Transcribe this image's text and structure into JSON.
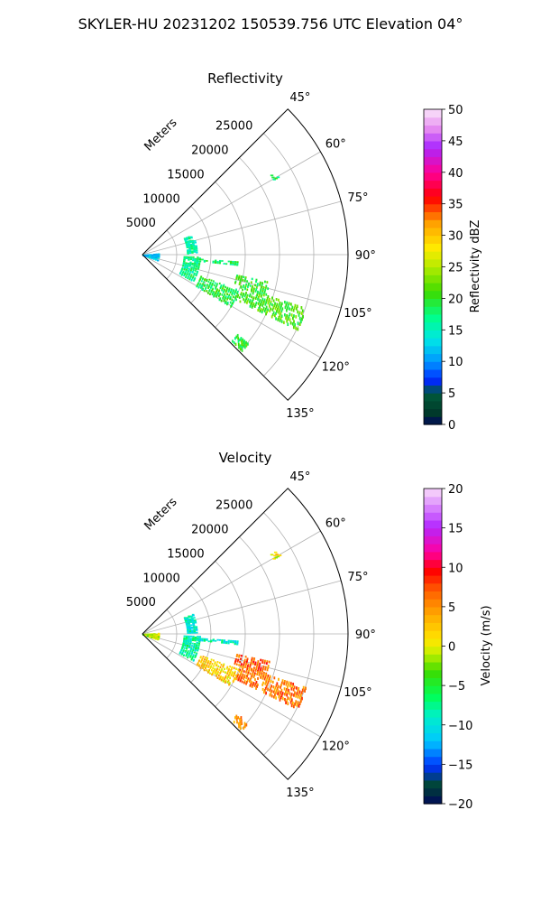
{
  "suptitle": "SKYLER-HU  20231202  150539.756 UTC Elevation 04°",
  "range_label": "Meters",
  "chart_data": [
    {
      "type": "heatmap",
      "projection": "polar",
      "title": "Reflectivity",
      "azimuth_range_deg": [
        45,
        135
      ],
      "azimuth_ticks": [
        "45°",
        "60°",
        "75°",
        "90°",
        "105°",
        "120°",
        "135°"
      ],
      "azimuth_tick_values": [
        45,
        60,
        75,
        90,
        105,
        120,
        135
      ],
      "range_ticks": [
        5000,
        10000,
        15000,
        20000,
        25000
      ],
      "range_tick_labels": [
        "5000",
        "10000",
        "15000",
        "20000",
        "25000"
      ],
      "range_max_m": 30000,
      "colorbar": {
        "label": "Reflectivity dBZ",
        "ticks": [
          0,
          5,
          10,
          15,
          20,
          25,
          30,
          35,
          40,
          45,
          50
        ],
        "tick_labels": [
          "0",
          "5",
          "10",
          "15",
          "20",
          "25",
          "30",
          "35",
          "40",
          "45",
          "50"
        ],
        "range": [
          0,
          50
        ]
      },
      "echo_regions": [
        {
          "name": "near-radar clutter",
          "az": [
            85,
            110
          ],
          "range_m": [
            0,
            2500
          ],
          "value": 12
        },
        {
          "name": "arc line north",
          "az": [
            68,
            88
          ],
          "range_m": [
            6500,
            8000
          ],
          "value": 16
        },
        {
          "name": "arc line south",
          "az": [
            92,
            118
          ],
          "range_m": [
            6000,
            8500
          ],
          "value": 17
        },
        {
          "name": "radial spoke",
          "az": [
            94,
            96
          ],
          "range_m": [
            8000,
            14000
          ],
          "value": 18
        },
        {
          "name": "storm cell east",
          "az": [
            102,
            108
          ],
          "range_m": [
            14000,
            19000
          ],
          "value": 20
        },
        {
          "name": "storm cell main",
          "az": [
            108,
            116
          ],
          "range_m": [
            15000,
            25000
          ],
          "value": 21
        },
        {
          "name": "storm cell west",
          "az": [
            110,
            120
          ],
          "range_m": [
            9000,
            15000
          ],
          "value": 19
        },
        {
          "name": "isolated patch far",
          "az": [
            130,
            134
          ],
          "range_m": [
            18000,
            20000
          ],
          "value": 20
        },
        {
          "name": "isolated patch north",
          "az": [
            58,
            60
          ],
          "range_m": [
            22000,
            23000
          ],
          "value": 18
        }
      ]
    },
    {
      "type": "heatmap",
      "projection": "polar",
      "title": "Velocity",
      "azimuth_range_deg": [
        45,
        135
      ],
      "azimuth_ticks": [
        "45°",
        "60°",
        "75°",
        "90°",
        "105°",
        "120°",
        "135°"
      ],
      "azimuth_tick_values": [
        45,
        60,
        75,
        90,
        105,
        120,
        135
      ],
      "range_ticks": [
        5000,
        10000,
        15000,
        20000,
        25000
      ],
      "range_tick_labels": [
        "5000",
        "10000",
        "15000",
        "20000",
        "25000"
      ],
      "range_max_m": 30000,
      "colorbar": {
        "label": "Velocity (m/s)",
        "ticks": [
          -20,
          -15,
          -10,
          -5,
          0,
          5,
          10,
          15,
          20
        ],
        "tick_labels": [
          "−20",
          "−15",
          "−10",
          "−5",
          "0",
          "5",
          "10",
          "15",
          "20"
        ],
        "range": [
          -20,
          20
        ]
      },
      "echo_regions": [
        {
          "name": "near-radar clutter",
          "az": [
            85,
            110
          ],
          "range_m": [
            0,
            2500
          ],
          "value": -1
        },
        {
          "name": "arc line north",
          "az": [
            68,
            88
          ],
          "range_m": [
            6500,
            8000
          ],
          "value": -9
        },
        {
          "name": "arc line south",
          "az": [
            92,
            118
          ],
          "range_m": [
            6000,
            8500
          ],
          "value": -8
        },
        {
          "name": "radial spoke",
          "az": [
            94,
            96
          ],
          "range_m": [
            8000,
            14000
          ],
          "value": -9
        },
        {
          "name": "storm cell east",
          "az": [
            102,
            108
          ],
          "range_m": [
            14000,
            19000
          ],
          "value": 7
        },
        {
          "name": "storm cell main",
          "az": [
            108,
            116
          ],
          "range_m": [
            15000,
            25000
          ],
          "value": 6
        },
        {
          "name": "storm cell west",
          "az": [
            110,
            120
          ],
          "range_m": [
            9000,
            15000
          ],
          "value": 2
        },
        {
          "name": "isolated patch far",
          "az": [
            130,
            134
          ],
          "range_m": [
            18000,
            20000
          ],
          "value": 5
        },
        {
          "name": "isolated patch north",
          "az": [
            58,
            60
          ],
          "range_m": [
            22000,
            23000
          ],
          "value": 1
        }
      ]
    }
  ]
}
